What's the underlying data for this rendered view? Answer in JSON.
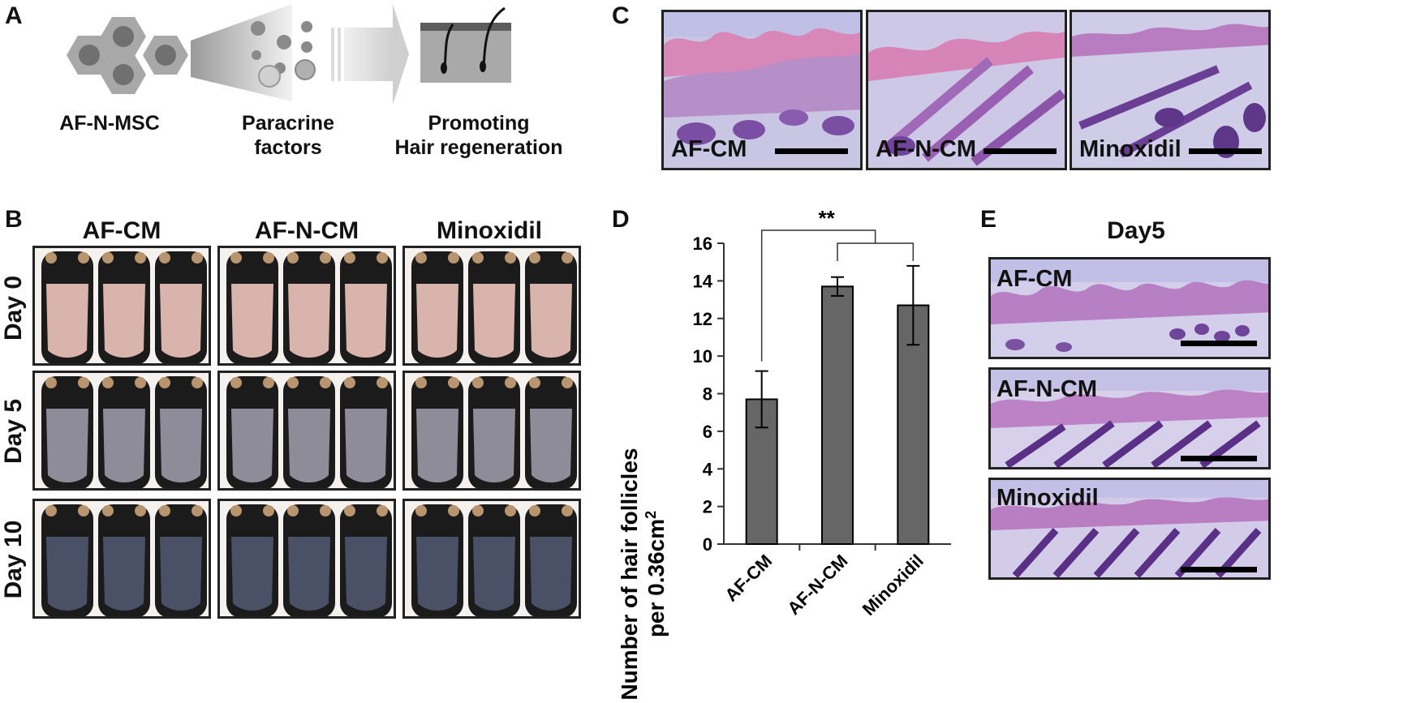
{
  "panel_labels": {
    "A": "A",
    "B": "B",
    "C": "C",
    "D": "D",
    "E": "E"
  },
  "panel_a": {
    "cell_label": "AF-N-MSC",
    "factor_label_line1": "Paracrine",
    "factor_label_line2": "factors",
    "result_label_line1": "Promoting",
    "result_label_line2": "Hair regeneration"
  },
  "panel_b": {
    "columns": [
      "AF-CM",
      "AF-N-CM",
      "Minoxidil"
    ],
    "rows": [
      "Day 0",
      "Day 5",
      "Day 10"
    ],
    "skin_colors": [
      "#d9b4ad",
      "#8e8c98",
      "#4a5166"
    ]
  },
  "panel_c": {
    "labels": [
      "AF-CM",
      "AF-N-CM",
      "Minoxidil"
    ]
  },
  "panel_e": {
    "title": "Day5",
    "labels": [
      "AF-CM",
      "AF-N-CM",
      "Minoxidil"
    ]
  },
  "chart_data": {
    "type": "bar",
    "categories": [
      "AF-CM",
      "AF-N-CM",
      "Minoxidil"
    ],
    "values": [
      7.7,
      13.7,
      12.7
    ],
    "errors": [
      1.5,
      0.5,
      2.1
    ],
    "ylabel_line1": "Number of hair follicles",
    "ylabel_line2": "per 0.36cm",
    "ylabel_sup": "2",
    "ylim": [
      0,
      16
    ],
    "yticks": [
      0,
      2,
      4,
      6,
      8,
      10,
      12,
      14,
      16
    ],
    "significance": "**",
    "bar_color": "#666666"
  }
}
